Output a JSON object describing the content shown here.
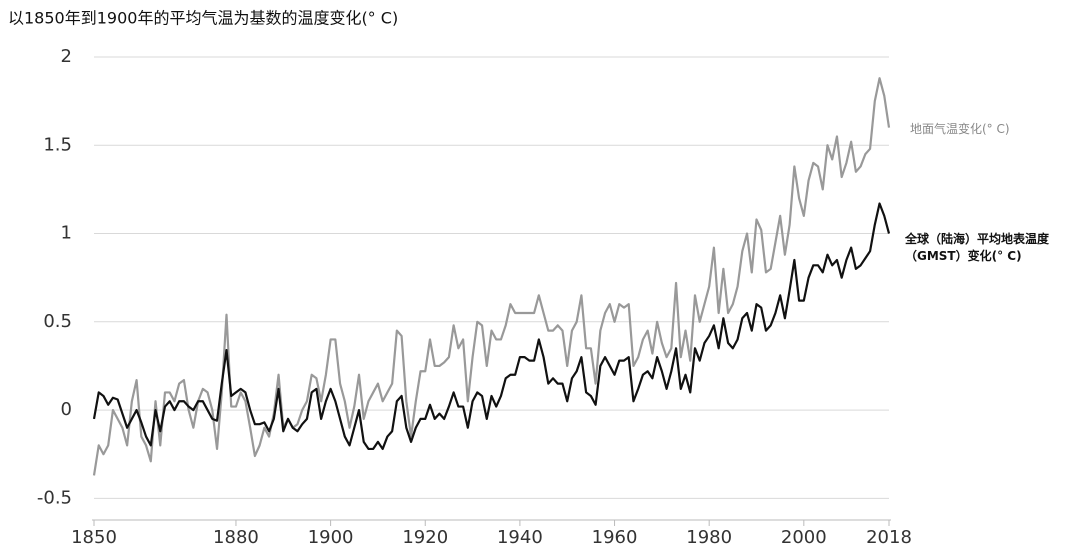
{
  "chart_data": {
    "type": "line",
    "title": "以1850年到1900年的平均气温为基数的温度变化(° C)",
    "x": [
      1850,
      1851,
      1852,
      1853,
      1854,
      1855,
      1856,
      1857,
      1858,
      1859,
      1860,
      1861,
      1862,
      1863,
      1864,
      1865,
      1866,
      1867,
      1868,
      1869,
      1870,
      1871,
      1872,
      1873,
      1874,
      1875,
      1876,
      1877,
      1878,
      1879,
      1880,
      1881,
      1882,
      1883,
      1884,
      1885,
      1886,
      1887,
      1888,
      1889,
      1890,
      1891,
      1892,
      1893,
      1894,
      1895,
      1896,
      1897,
      1898,
      1899,
      1900,
      1901,
      1902,
      1903,
      1904,
      1905,
      1906,
      1907,
      1908,
      1909,
      1910,
      1911,
      1912,
      1913,
      1914,
      1915,
      1916,
      1917,
      1918,
      1919,
      1920,
      1921,
      1922,
      1923,
      1924,
      1925,
      1926,
      1927,
      1928,
      1929,
      1930,
      1931,
      1932,
      1933,
      1934,
      1935,
      1936,
      1937,
      1938,
      1939,
      1940,
      1941,
      1942,
      1943,
      1944,
      1945,
      1946,
      1947,
      1948,
      1949,
      1950,
      1951,
      1952,
      1953,
      1954,
      1955,
      1956,
      1957,
      1958,
      1959,
      1960,
      1961,
      1962,
      1963,
      1964,
      1965,
      1966,
      1967,
      1968,
      1969,
      1970,
      1971,
      1972,
      1973,
      1974,
      1975,
      1976,
      1977,
      1978,
      1979,
      1980,
      1981,
      1982,
      1983,
      1984,
      1985,
      1986,
      1987,
      1988,
      1989,
      1990,
      1991,
      1992,
      1993,
      1994,
      1995,
      1996,
      1997,
      1998,
      1999,
      2000,
      2001,
      2002,
      2003,
      2004,
      2005,
      2006,
      2007,
      2008,
      2009,
      2010,
      2011,
      2012,
      2013,
      2014,
      2015,
      2016,
      2017,
      2018
    ],
    "series": [
      {
        "name": "地面气温变化(° C)",
        "color": "#999999",
        "values": [
          -0.37,
          -0.2,
          -0.25,
          -0.2,
          0.0,
          -0.05,
          -0.1,
          -0.2,
          0.05,
          0.17,
          -0.15,
          -0.2,
          -0.29,
          0.05,
          -0.2,
          0.1,
          0.1,
          0.05,
          0.15,
          0.17,
          0.0,
          -0.1,
          0.05,
          0.12,
          0.1,
          0.0,
          -0.22,
          0.1,
          0.54,
          0.02,
          0.02,
          0.1,
          0.05,
          -0.1,
          -0.26,
          -0.2,
          -0.1,
          -0.15,
          -0.02,
          0.2,
          -0.1,
          -0.05,
          -0.1,
          -0.08,
          0.0,
          0.05,
          0.2,
          0.18,
          0.05,
          0.2,
          0.4,
          0.4,
          0.15,
          0.05,
          -0.1,
          0.02,
          0.2,
          -0.05,
          0.05,
          0.1,
          0.15,
          0.05,
          0.1,
          0.15,
          0.45,
          0.42,
          0.05,
          -0.15,
          0.05,
          0.22,
          0.22,
          0.4,
          0.25,
          0.25,
          0.27,
          0.3,
          0.48,
          0.35,
          0.4,
          0.05,
          0.3,
          0.5,
          0.48,
          0.25,
          0.45,
          0.4,
          0.4,
          0.48,
          0.6,
          0.55,
          0.55,
          0.55,
          0.55,
          0.55,
          0.65,
          0.55,
          0.45,
          0.45,
          0.48,
          0.45,
          0.25,
          0.45,
          0.5,
          0.65,
          0.35,
          0.35,
          0.15,
          0.45,
          0.55,
          0.6,
          0.5,
          0.6,
          0.58,
          0.6,
          0.25,
          0.3,
          0.4,
          0.45,
          0.32,
          0.5,
          0.38,
          0.3,
          0.35,
          0.72,
          0.3,
          0.45,
          0.28,
          0.65,
          0.5,
          0.6,
          0.7,
          0.92,
          0.55,
          0.8,
          0.55,
          0.6,
          0.7,
          0.9,
          1.0,
          0.78,
          1.08,
          1.02,
          0.78,
          0.8,
          0.95,
          1.1,
          0.88,
          1.05,
          1.38,
          1.2,
          1.1,
          1.3,
          1.4,
          1.38,
          1.25,
          1.5,
          1.42,
          1.55,
          1.32,
          1.4,
          1.52,
          1.35,
          1.38,
          1.45,
          1.48,
          1.75,
          1.88,
          1.78,
          1.6
        ]
      },
      {
        "name": "全球（陆海）平均地表温度（GMST）变化(° C)",
        "color": "#111111",
        "values": [
          -0.05,
          0.1,
          0.08,
          0.03,
          0.07,
          0.06,
          -0.02,
          -0.1,
          -0.05,
          0.0,
          -0.07,
          -0.15,
          -0.2,
          0.0,
          -0.12,
          0.02,
          0.05,
          0.0,
          0.05,
          0.05,
          0.02,
          0.0,
          0.05,
          0.05,
          0.0,
          -0.05,
          -0.06,
          0.15,
          0.34,
          0.08,
          0.1,
          0.12,
          0.1,
          0.0,
          -0.08,
          -0.08,
          -0.07,
          -0.12,
          -0.05,
          0.12,
          -0.12,
          -0.05,
          -0.1,
          -0.12,
          -0.08,
          -0.05,
          0.1,
          0.12,
          -0.05,
          0.05,
          0.12,
          0.05,
          -0.05,
          -0.15,
          -0.2,
          -0.1,
          0.0,
          -0.18,
          -0.22,
          -0.22,
          -0.18,
          -0.22,
          -0.15,
          -0.12,
          0.05,
          0.08,
          -0.1,
          -0.18,
          -0.1,
          -0.05,
          -0.05,
          0.03,
          -0.05,
          -0.02,
          -0.05,
          0.02,
          0.1,
          0.02,
          0.02,
          -0.1,
          0.05,
          0.1,
          0.08,
          -0.05,
          0.08,
          0.02,
          0.08,
          0.18,
          0.2,
          0.2,
          0.3,
          0.3,
          0.28,
          0.28,
          0.4,
          0.3,
          0.15,
          0.18,
          0.15,
          0.15,
          0.05,
          0.18,
          0.22,
          0.3,
          0.1,
          0.08,
          0.03,
          0.25,
          0.3,
          0.25,
          0.2,
          0.28,
          0.28,
          0.3,
          0.05,
          0.12,
          0.2,
          0.22,
          0.18,
          0.3,
          0.22,
          0.12,
          0.22,
          0.35,
          0.12,
          0.2,
          0.1,
          0.35,
          0.28,
          0.38,
          0.42,
          0.48,
          0.35,
          0.52,
          0.38,
          0.35,
          0.4,
          0.52,
          0.55,
          0.45,
          0.6,
          0.58,
          0.45,
          0.48,
          0.55,
          0.65,
          0.52,
          0.68,
          0.85,
          0.62,
          0.62,
          0.75,
          0.82,
          0.82,
          0.78,
          0.88,
          0.82,
          0.85,
          0.75,
          0.85,
          0.92,
          0.8,
          0.82,
          0.86,
          0.9,
          1.05,
          1.17,
          1.1,
          1.0
        ]
      }
    ],
    "xlim": [
      1850,
      2018
    ],
    "xticks": [
      1850,
      1880,
      1900,
      1920,
      1940,
      1960,
      1980,
      2000,
      2018
    ],
    "ylim": [
      -0.6,
      2
    ],
    "yticks": [
      -0.5,
      0,
      0.5,
      1,
      1.5,
      2
    ],
    "grid": true
  }
}
